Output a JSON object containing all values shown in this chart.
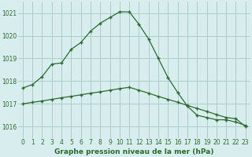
{
  "line1_x": [
    0,
    1,
    2,
    3,
    4,
    5,
    6,
    7,
    8,
    9,
    10,
    11,
    12,
    13,
    14,
    15,
    16,
    17,
    18,
    19,
    20,
    21,
    22,
    23
  ],
  "line1_y": [
    1017.7,
    1017.85,
    1018.2,
    1018.75,
    1018.8,
    1019.4,
    1019.7,
    1020.2,
    1020.55,
    1020.8,
    1021.05,
    1021.05,
    1020.5,
    1019.85,
    1019.0,
    1018.15,
    1017.5,
    1016.9,
    1016.5,
    1016.4,
    1016.3,
    1016.3,
    1016.2,
    1016.05
  ],
  "line2_x": [
    0,
    1,
    2,
    3,
    4,
    5,
    6,
    7,
    8,
    9,
    10,
    11,
    12,
    13,
    14,
    15,
    16,
    17,
    18,
    19,
    20,
    21,
    22,
    23
  ],
  "line2_y": [
    1017.0,
    1017.07,
    1017.13,
    1017.2,
    1017.27,
    1017.33,
    1017.4,
    1017.47,
    1017.53,
    1017.6,
    1017.67,
    1017.73,
    1017.6,
    1017.47,
    1017.33,
    1017.2,
    1017.07,
    1016.93,
    1016.8,
    1016.67,
    1016.53,
    1016.4,
    1016.35,
    1016.0
  ],
  "line_color": "#2d6a2d",
  "bg_color": "#d8eeee",
  "grid_color": "#aacccc",
  "xlabel": "Graphe pression niveau de la mer (hPa)",
  "ylim": [
    1015.5,
    1021.5
  ],
  "xlim": [
    -0.5,
    23.5
  ],
  "yticks": [
    1016,
    1017,
    1018,
    1019,
    1020,
    1021
  ],
  "xticks": [
    0,
    1,
    2,
    3,
    4,
    5,
    6,
    7,
    8,
    9,
    10,
    11,
    12,
    13,
    14,
    15,
    16,
    17,
    18,
    19,
    20,
    21,
    22,
    23
  ],
  "xlabel_fontsize": 6.5,
  "tick_fontsize": 5.5
}
